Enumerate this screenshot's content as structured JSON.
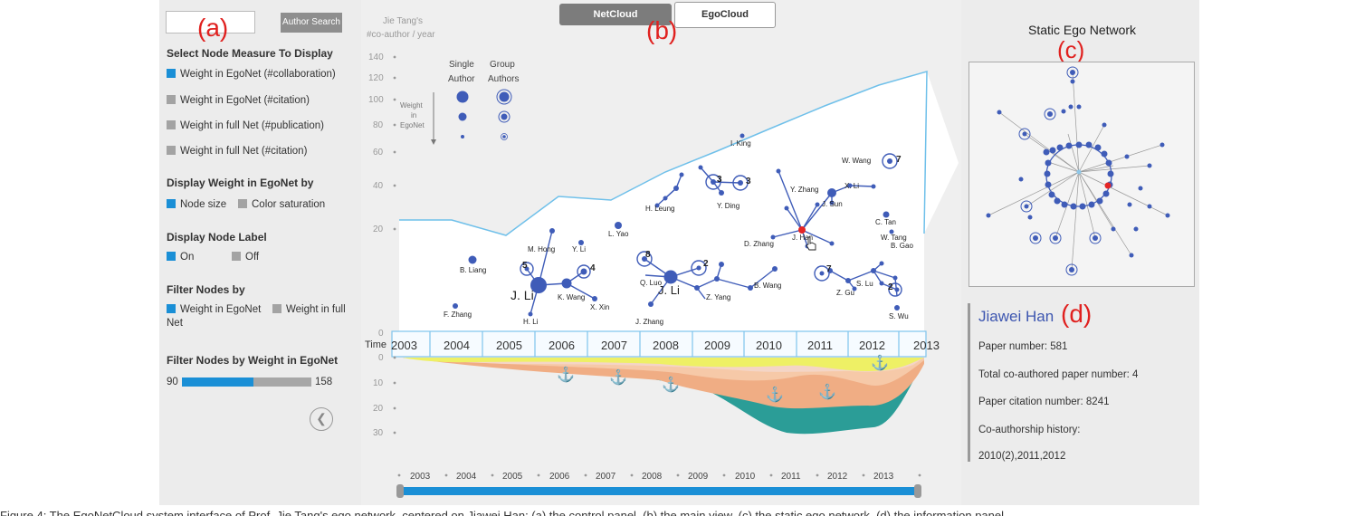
{
  "left": {
    "label": "(a)",
    "search_button": "Author Search",
    "search_value": "",
    "measure_title": "Select Node Measure To Display",
    "measures": [
      "Weight in EgoNet (#collaboration)",
      "Weight in EgoNet (#citation)",
      "Weight in full Net (#publication)",
      "Weight in full Net (#citation)"
    ],
    "display_title": "Display Weight in EgoNet by",
    "display_opt1": "Node size",
    "display_opt2": "Color saturation",
    "label_title": "Display Node Label",
    "label_on": "On",
    "label_off": "Off",
    "filter_title": "Filter Nodes by",
    "filter_opt1": "Weight in EgoNet",
    "filter_opt2a": "Weight in full",
    "filter_opt2b": "Net",
    "range_title": "Filter Nodes by Weight in EgoNet",
    "range_min": "90",
    "range_max": "158",
    "range_fraction": 0.55
  },
  "center": {
    "label": "(b)",
    "tab_active": "NetCloud",
    "tab_inactive": "EgoCloud",
    "y_title_1": "Jie Tang's",
    "y_title_2": "#co-author / year",
    "y_ticks": [
      "140",
      "120",
      "100",
      "80",
      "60",
      "40",
      "20",
      "0"
    ],
    "legend_single_1": "Single",
    "legend_single_2": "Author",
    "legend_group_1": "Group",
    "legend_group_2": "Authors",
    "legend_weight_1": "Weight",
    "legend_weight_2": "in",
    "legend_weight_3": "EgoNet",
    "time_label": "Time",
    "years": [
      "2003",
      "2004",
      "2005",
      "2006",
      "2007",
      "2008",
      "2009",
      "2010",
      "2011",
      "2012",
      "2013"
    ],
    "lower_ticks": [
      "0",
      "10",
      "20",
      "30"
    ],
    "timeline_years": [
      "2003",
      "2004",
      "2005",
      "2006",
      "2007",
      "2008",
      "2009",
      "2010",
      "2011",
      "2012",
      "2013"
    ],
    "nodes": [
      {
        "name": "I. King"
      },
      {
        "name": "W. Wang"
      },
      {
        "name": "Y. Zhang"
      },
      {
        "name": "X. Li"
      },
      {
        "name": "J. Sun"
      },
      {
        "name": "H. Leung"
      },
      {
        "name": "Y. Ding"
      },
      {
        "name": "C. Tan"
      },
      {
        "name": "W. Tang"
      },
      {
        "name": "B. Gao"
      },
      {
        "name": "L. Yao"
      },
      {
        "name": "M. Hong"
      },
      {
        "name": "Y. Li"
      },
      {
        "name": "D. Zhang"
      },
      {
        "name": "J. Han"
      },
      {
        "name": "B. Liang"
      },
      {
        "name": "K. Wang"
      },
      {
        "name": "J. Li"
      },
      {
        "name": "X. Xin"
      },
      {
        "name": "H. Li"
      },
      {
        "name": "F. Zhang"
      },
      {
        "name": "Q. Luo"
      },
      {
        "name": "J. Li"
      },
      {
        "name": "Z. Yang"
      },
      {
        "name": "B. Wang"
      },
      {
        "name": "J. Zhang"
      },
      {
        "name": "Z. Gu"
      },
      {
        "name": "S. Lu"
      },
      {
        "name": "S. Wu"
      }
    ],
    "group_counts": [
      "5",
      "4",
      "8",
      "2",
      "3",
      "3",
      "7",
      "7",
      "2"
    ]
  },
  "right": {
    "title": "Static Ego Network",
    "label_c": "(c)",
    "label_d": "(d)",
    "author": "Jiawei Han",
    "paper_number": "Paper number: 581",
    "coauthored": "Total co-authored paper number: 4",
    "citation": "Paper citation number: 8241",
    "history_title": "Co-authorship history:",
    "history": "2010(2),2011,2012"
  },
  "caption": "Figure 4: The EgoNetCloud system interface of Prof. Jie Tang's ego network, centered on Jiawei Han: (a) the control panel, (b) the main view, (c) the static ego network, (d) the information panel."
}
